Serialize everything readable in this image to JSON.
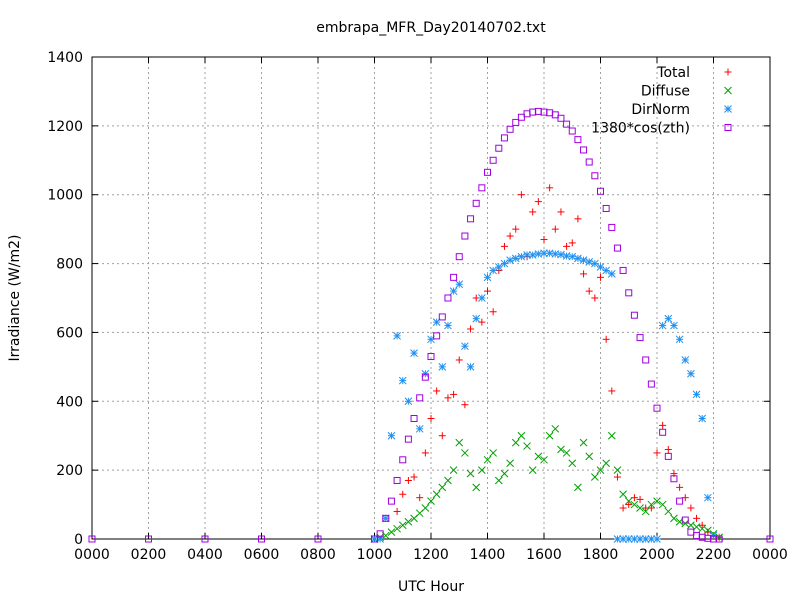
{
  "chart_data": {
    "type": "scatter",
    "title": "embrapa_MFR_Day20140702.txt",
    "xlabel": "UTC Hour",
    "ylabel": "Irradiance (W/m2)",
    "xlim": [
      0,
      24
    ],
    "ylim": [
      0,
      1400
    ],
    "x_ticks": [
      0,
      2,
      4,
      6,
      8,
      10,
      12,
      14,
      16,
      18,
      20,
      22,
      24
    ],
    "x_tick_labels": [
      "0000",
      "0200",
      "0400",
      "0600",
      "0800",
      "1000",
      "1200",
      "1400",
      "1600",
      "1800",
      "2000",
      "2200",
      "0000"
    ],
    "y_ticks": [
      0,
      200,
      400,
      600,
      800,
      1000,
      1200,
      1400
    ],
    "y_tick_labels": [
      "0",
      "200",
      "400",
      "600",
      "800",
      "1000",
      "1200",
      "1400"
    ],
    "grid": true,
    "legend_position": "top-right",
    "series": [
      {
        "name": "Total",
        "marker": "plus",
        "color": "#ff0000",
        "x": [
          10.8,
          11.0,
          11.2,
          11.4,
          11.6,
          11.8,
          12.0,
          12.2,
          12.4,
          12.6,
          12.8,
          13.0,
          13.2,
          13.4,
          13.6,
          13.8,
          14.0,
          14.2,
          14.4,
          14.6,
          14.8,
          15.0,
          15.2,
          15.4,
          15.6,
          15.8,
          16.0,
          16.2,
          16.4,
          16.6,
          16.8,
          17.0,
          17.2,
          17.4,
          17.6,
          17.8,
          18.0,
          18.2,
          18.4,
          18.6,
          18.8,
          19.0,
          19.2,
          19.4,
          19.6,
          19.8,
          20.0,
          20.2,
          20.4,
          20.6,
          20.8,
          21.0,
          21.2,
          21.4,
          21.6,
          21.8,
          22.0,
          22.2
        ],
        "y": [
          80,
          130,
          170,
          180,
          120,
          250,
          350,
          430,
          300,
          410,
          420,
          520,
          390,
          610,
          700,
          630,
          720,
          660,
          780,
          850,
          880,
          900,
          1000,
          820,
          950,
          980,
          870,
          1020,
          900,
          950,
          850,
          860,
          930,
          770,
          720,
          700,
          760,
          580,
          430,
          180,
          90,
          100,
          120,
          115,
          90,
          90,
          250,
          330,
          260,
          190,
          150,
          120,
          90,
          60,
          40,
          20,
          10,
          5
        ]
      },
      {
        "name": "Diffuse",
        "marker": "cross",
        "color": "#00a000",
        "x": [
          10.0,
          10.2,
          10.4,
          10.6,
          10.8,
          11.0,
          11.2,
          11.4,
          11.6,
          11.8,
          12.0,
          12.2,
          12.4,
          12.6,
          12.8,
          13.0,
          13.2,
          13.4,
          13.6,
          13.8,
          14.0,
          14.2,
          14.4,
          14.6,
          14.8,
          15.0,
          15.2,
          15.4,
          15.6,
          15.8,
          16.0,
          16.2,
          16.4,
          16.6,
          16.8,
          17.0,
          17.2,
          17.4,
          17.6,
          17.8,
          18.0,
          18.2,
          18.4,
          18.6,
          18.8,
          19.0,
          19.2,
          19.4,
          19.6,
          19.8,
          20.0,
          20.2,
          20.4,
          20.6,
          20.8,
          21.0,
          21.2,
          21.4,
          21.6,
          21.8,
          22.0,
          22.2
        ],
        "y": [
          0,
          5,
          10,
          20,
          30,
          40,
          50,
          60,
          75,
          90,
          110,
          130,
          150,
          170,
          200,
          280,
          250,
          190,
          150,
          200,
          230,
          250,
          170,
          190,
          220,
          280,
          300,
          270,
          200,
          240,
          230,
          300,
          320,
          260,
          250,
          220,
          150,
          280,
          240,
          180,
          200,
          220,
          300,
          200,
          130,
          110,
          100,
          90,
          80,
          100,
          110,
          100,
          80,
          60,
          50,
          45,
          40,
          35,
          30,
          25,
          15,
          5
        ]
      },
      {
        "name": "DirNorm",
        "marker": "star",
        "color": "#2090f0",
        "x": [
          10.0,
          10.2,
          10.4,
          10.6,
          10.8,
          11.0,
          11.2,
          11.4,
          11.6,
          11.8,
          12.0,
          12.2,
          12.4,
          12.6,
          12.8,
          13.0,
          13.2,
          13.4,
          13.6,
          13.8,
          14.0,
          14.2,
          14.4,
          14.6,
          14.8,
          15.0,
          15.2,
          15.4,
          15.6,
          15.8,
          16.0,
          16.2,
          16.4,
          16.6,
          16.8,
          17.0,
          17.2,
          17.4,
          17.6,
          17.8,
          18.0,
          18.2,
          18.4,
          18.6,
          18.8,
          19.0,
          19.2,
          19.4,
          19.6,
          19.8,
          20.0,
          20.2,
          20.4,
          20.6,
          20.8,
          21.0,
          21.2,
          21.4,
          21.6,
          21.8,
          22.0
        ],
        "y": [
          0,
          0,
          60,
          300,
          590,
          460,
          400,
          540,
          320,
          480,
          580,
          630,
          500,
          620,
          720,
          740,
          560,
          500,
          640,
          700,
          760,
          780,
          790,
          800,
          810,
          815,
          820,
          825,
          825,
          828,
          830,
          830,
          828,
          826,
          822,
          820,
          815,
          810,
          805,
          800,
          790,
          780,
          770,
          0,
          0,
          0,
          0,
          0,
          0,
          0,
          0,
          620,
          640,
          620,
          580,
          520,
          480,
          420,
          350,
          120,
          10
        ]
      },
      {
        "name": "1380*cos(zth)",
        "marker": "square",
        "color": "#a000e0",
        "x": [
          0,
          2,
          4,
          6,
          8,
          10,
          10.2,
          10.4,
          10.6,
          10.8,
          11.0,
          11.2,
          11.4,
          11.6,
          11.8,
          12.0,
          12.2,
          12.4,
          12.6,
          12.8,
          13.0,
          13.2,
          13.4,
          13.6,
          13.8,
          14.0,
          14.2,
          14.4,
          14.6,
          14.8,
          15.0,
          15.2,
          15.4,
          15.6,
          15.8,
          16.0,
          16.2,
          16.4,
          16.6,
          16.8,
          17.0,
          17.2,
          17.4,
          17.6,
          17.8,
          18.0,
          18.2,
          18.4,
          18.6,
          18.8,
          19.0,
          19.2,
          19.4,
          19.6,
          19.8,
          20.0,
          20.2,
          20.4,
          20.6,
          20.8,
          21.0,
          21.2,
          21.4,
          21.6,
          21.8,
          22.0,
          22.2,
          24
        ],
        "y": [
          0,
          0,
          0,
          0,
          0,
          0,
          15,
          60,
          110,
          170,
          230,
          290,
          350,
          410,
          470,
          530,
          590,
          645,
          700,
          760,
          820,
          880,
          930,
          975,
          1020,
          1065,
          1100,
          1135,
          1165,
          1190,
          1210,
          1225,
          1235,
          1240,
          1242,
          1240,
          1238,
          1232,
          1222,
          1205,
          1185,
          1160,
          1130,
          1095,
          1055,
          1010,
          960,
          905,
          845,
          780,
          715,
          650,
          585,
          520,
          450,
          380,
          310,
          240,
          175,
          110,
          55,
          20,
          10,
          5,
          2,
          0,
          0,
          0
        ]
      }
    ]
  }
}
